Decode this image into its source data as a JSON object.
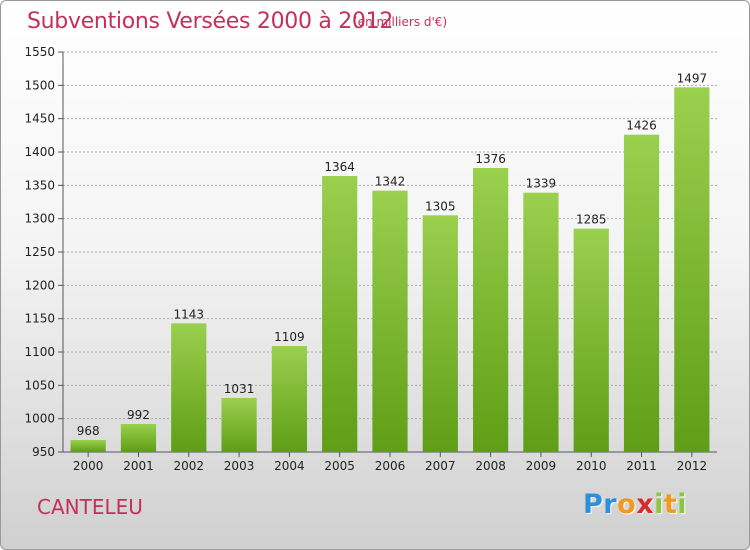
{
  "header": {
    "title": "Subventions Versées 2000 à 2012",
    "subtitle": "(en milliers d'€)"
  },
  "footer": {
    "commune": "CANTELEU",
    "logo_letters": [
      "P",
      "r",
      "o",
      "x",
      "i",
      "t",
      "i"
    ],
    "logo_colors": [
      "#2f8fd8",
      "#2f8fd8",
      "#f29a1f",
      "#d52d2d",
      "#8cc63f",
      "#f29a1f",
      "#8cc63f"
    ]
  },
  "colors": {
    "title": "#c4305a",
    "bar_top": "#9ad04e",
    "bar_bottom": "#5f9e16",
    "grid": "#aaaaaa",
    "axis_text": "#222222"
  },
  "chart_data": {
    "type": "bar",
    "title": "Subventions Versées 2000 à 2012",
    "subtitle": "(en milliers d'€)",
    "categories": [
      "2000",
      "2001",
      "2002",
      "2003",
      "2004",
      "2005",
      "2006",
      "2007",
      "2008",
      "2009",
      "2010",
      "2011",
      "2012"
    ],
    "values": [
      968,
      992,
      1143,
      1031,
      1109,
      1364,
      1342,
      1305,
      1376,
      1339,
      1285,
      1426,
      1497
    ],
    "ylim": [
      950,
      1550
    ],
    "yticks": [
      950,
      1000,
      1050,
      1100,
      1150,
      1200,
      1250,
      1300,
      1350,
      1400,
      1450,
      1500,
      1550
    ],
    "grid": true,
    "data_labels": true
  }
}
